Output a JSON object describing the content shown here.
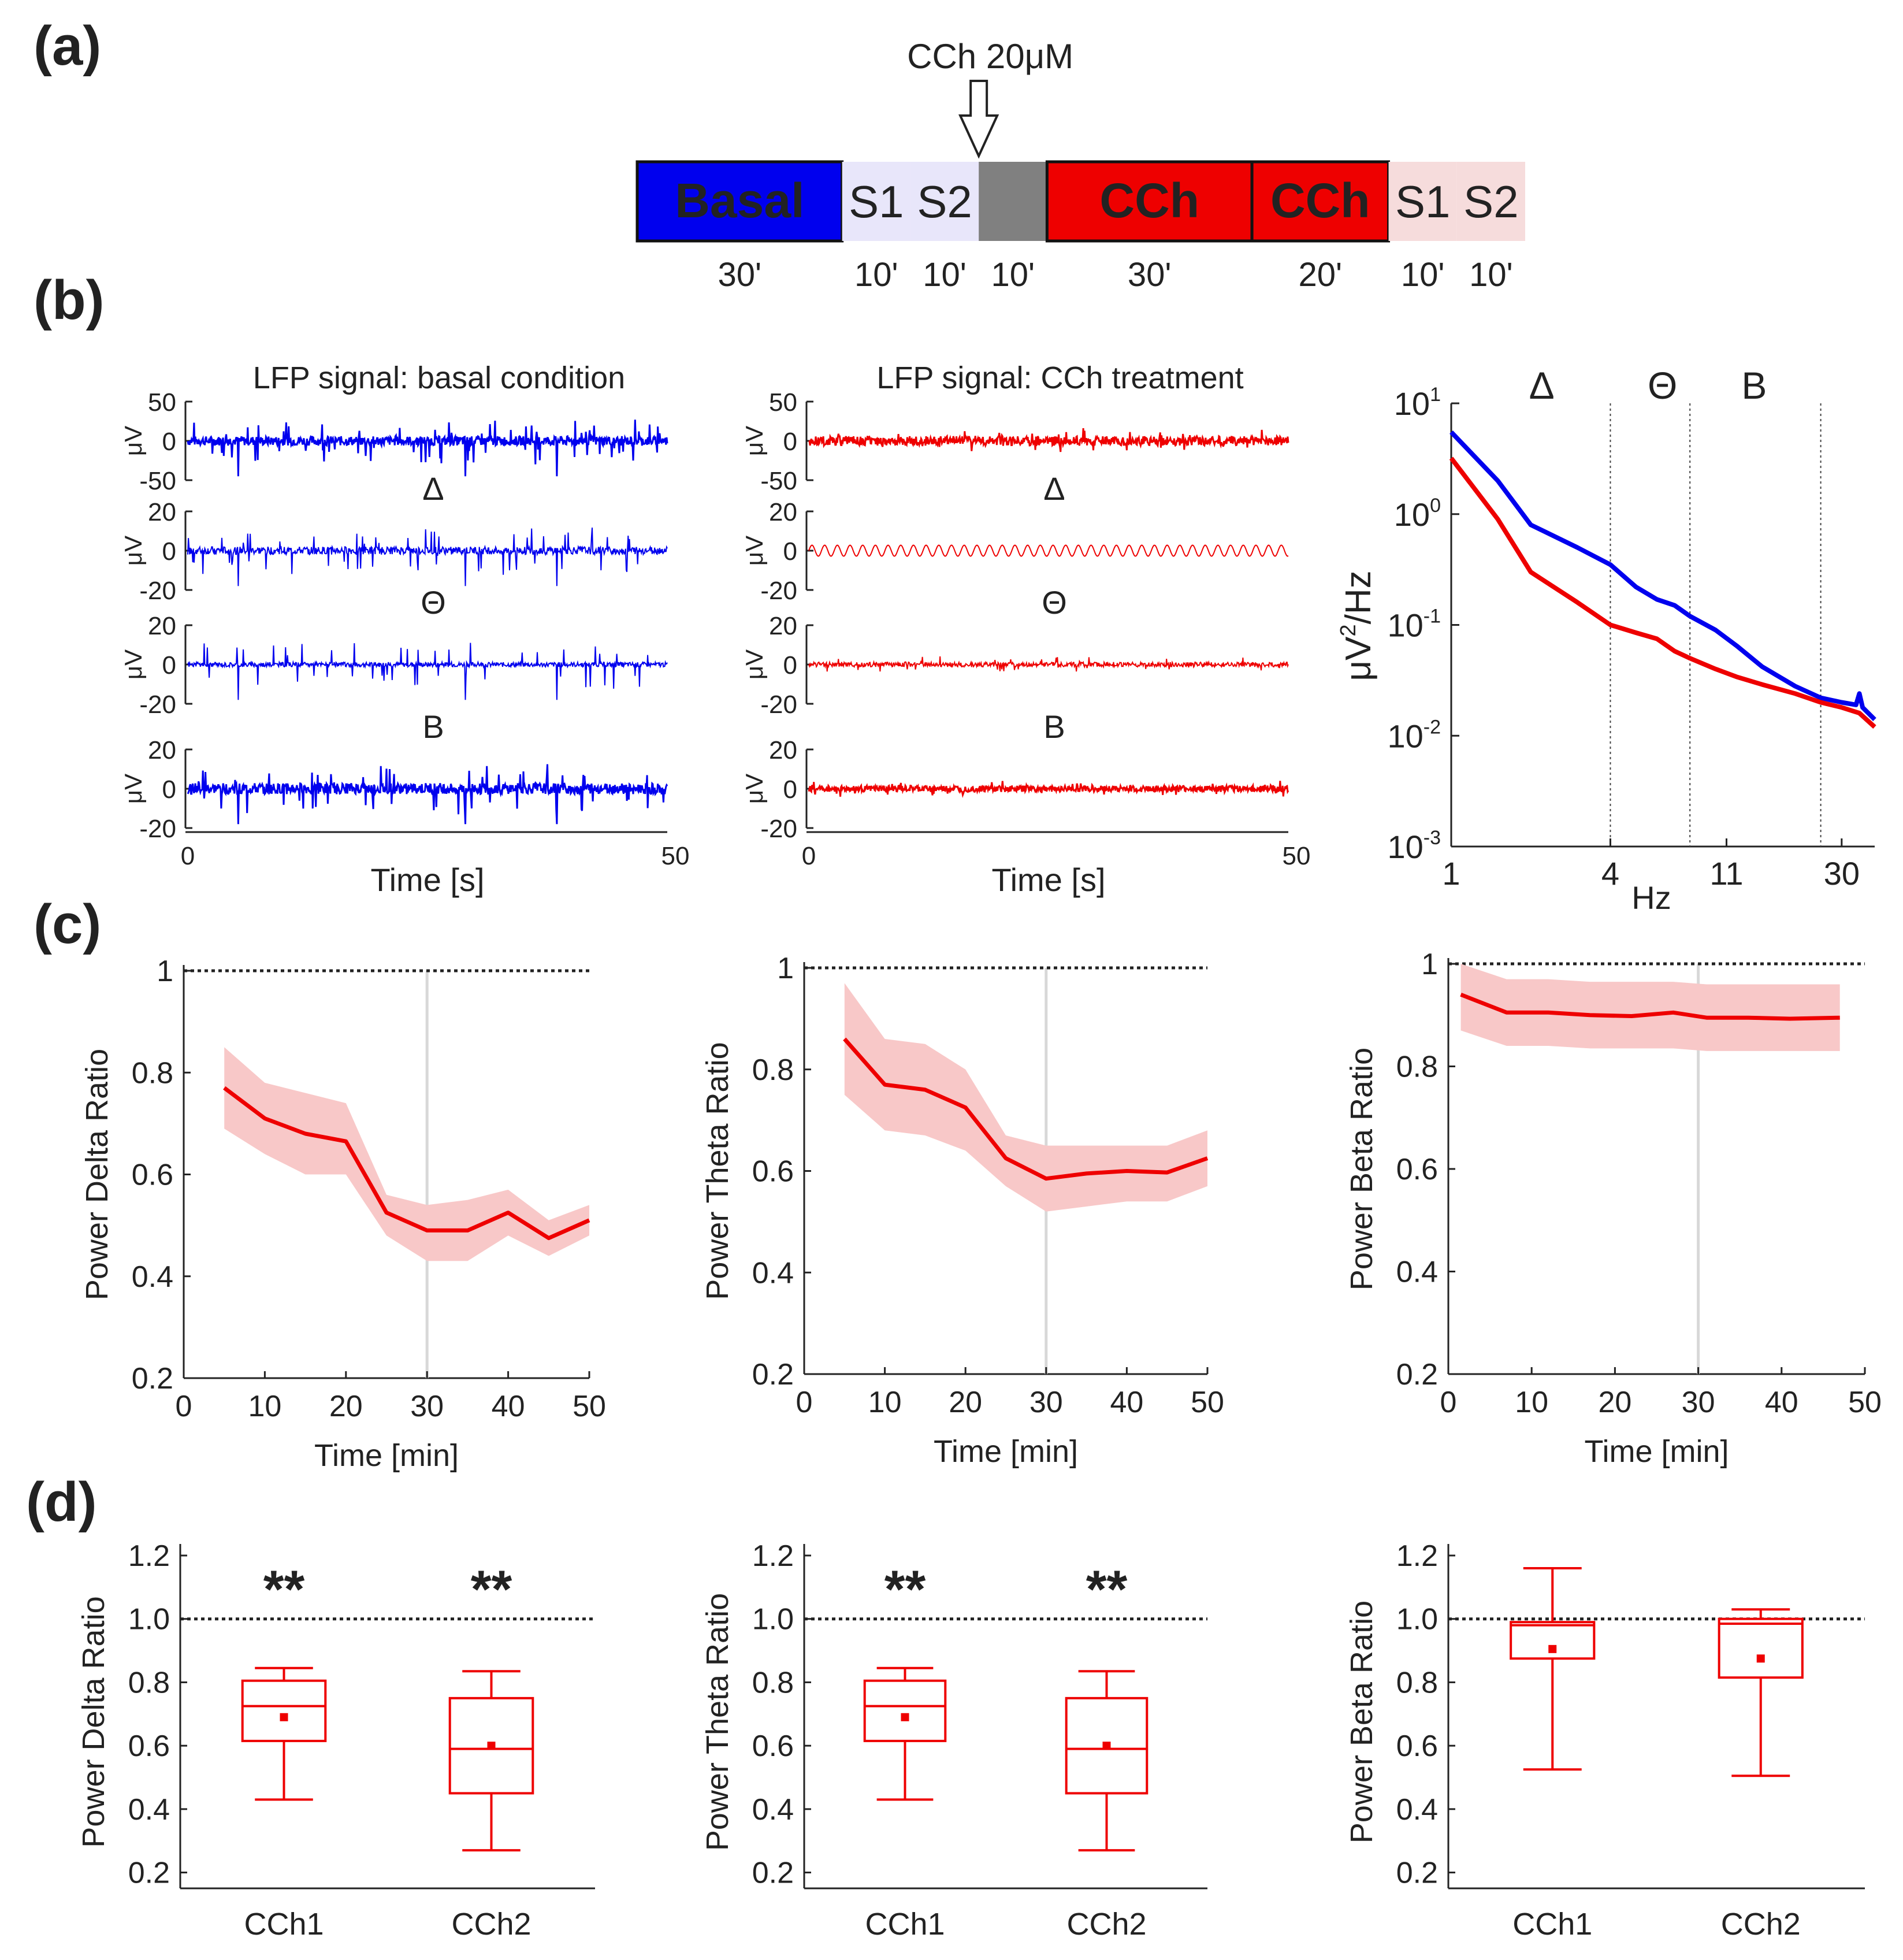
{
  "panel_labels": [
    "(a)",
    "(b)",
    "(c)",
    "(d)"
  ],
  "colors": {
    "basal": "#0000ee",
    "cch": "#ee0000",
    "band": "#f8c8c8",
    "grey": "#808080",
    "s_basal": "#e8e6fa",
    "s_cch": "#f6dcdc"
  },
  "chart_data": [
    {
      "id": "protocol",
      "type": "timeline",
      "panel": "(a)",
      "drug_label": "CCh 20μM",
      "segments": [
        {
          "label": "Basal",
          "duration": "30'",
          "minutes": 30,
          "kind": "basal"
        },
        {
          "label": "S1",
          "duration": "10'",
          "minutes": 10,
          "kind": "s_basal"
        },
        {
          "label": "S2",
          "duration": "10'",
          "minutes": 10,
          "kind": "s_basal"
        },
        {
          "label": "",
          "duration": "10'",
          "minutes": 10,
          "kind": "grey"
        },
        {
          "label": "CCh",
          "duration": "30'",
          "minutes": 30,
          "kind": "cch"
        },
        {
          "label": "CCh",
          "duration": "20'",
          "minutes": 20,
          "kind": "cch"
        },
        {
          "label": "S1",
          "duration": "10'",
          "minutes": 10,
          "kind": "s_cch"
        },
        {
          "label": "S2",
          "duration": "10'",
          "minutes": 10,
          "kind": "s_cch"
        }
      ]
    },
    {
      "id": "lfp-basal",
      "type": "line",
      "panel": "(b)",
      "title": "LFP signal: basal condition",
      "xlabel": "Time [s]",
      "ylabel": "μV",
      "xlim": [
        0,
        50
      ],
      "xticks": [
        "0",
        "50"
      ],
      "color": "#0000ee",
      "rows": [
        {
          "name": "raw",
          "label": "",
          "ylim": [
            -50,
            50
          ],
          "yticks": [
            "50",
            "0",
            "-50"
          ],
          "noise": 0.12,
          "spike": 0.55
        },
        {
          "name": "delta",
          "label": "Δ",
          "ylim": [
            -20,
            20
          ],
          "yticks": [
            "20",
            "0",
            "-20"
          ],
          "noise": 0.1,
          "spike": 0.55
        },
        {
          "name": "theta",
          "label": "Θ",
          "ylim": [
            -20,
            20
          ],
          "yticks": [
            "20",
            "0",
            "-20"
          ],
          "noise": 0.06,
          "spike": 0.6
        },
        {
          "name": "beta",
          "label": "B",
          "ylim": [
            -20,
            20
          ],
          "yticks": [
            "20",
            "0",
            "-20"
          ],
          "noise": 0.14,
          "spike": 0.55
        }
      ]
    },
    {
      "id": "lfp-cch",
      "type": "line",
      "panel": "(b)",
      "title": "LFP signal: CCh treatment",
      "xlabel": "Time [s]",
      "ylabel": "μV",
      "xlim": [
        0,
        50
      ],
      "xticks": [
        "0",
        "50"
      ],
      "color": "#ee0000",
      "rows": [
        {
          "name": "raw",
          "label": "",
          "ylim": [
            -50,
            50
          ],
          "yticks": [
            "50",
            "0",
            "-50"
          ],
          "noise": 0.12,
          "spike": 0.22
        },
        {
          "name": "delta",
          "label": "Δ",
          "ylim": [
            -20,
            20
          ],
          "yticks": [
            "20",
            "0",
            "-20"
          ],
          "noise": 0.14,
          "spike": 0.0
        },
        {
          "name": "theta",
          "label": "Θ",
          "ylim": [
            -20,
            20
          ],
          "yticks": [
            "20",
            "0",
            "-20"
          ],
          "noise": 0.06,
          "spike": 0.18
        },
        {
          "name": "beta",
          "label": "B",
          "ylim": [
            -20,
            20
          ],
          "yticks": [
            "20",
            "0",
            "-20"
          ],
          "noise": 0.08,
          "spike": 0.15
        }
      ]
    },
    {
      "id": "psd",
      "type": "line",
      "panel": "(b)",
      "xlabel": "Hz",
      "ylabel": "μV²/Hz",
      "ylabel_main": "μV",
      "ylabel_sup": "2",
      "ylabel_tail": "/Hz",
      "xscale": "log",
      "yscale": "log",
      "xlim": [
        1,
        40
      ],
      "ylim": [
        0.001,
        10
      ],
      "xticks": [
        {
          "v": 1,
          "t": "1"
        },
        {
          "v": 4,
          "t": "4"
        },
        {
          "v": 11,
          "t": "11"
        },
        {
          "v": 30,
          "t": "30"
        }
      ],
      "yticks": [
        {
          "v": 10,
          "base": "10",
          "exp": "1"
        },
        {
          "v": 1,
          "base": "10",
          "exp": "0"
        },
        {
          "v": 0.1,
          "base": "10",
          "exp": "-1"
        },
        {
          "v": 0.01,
          "base": "10",
          "exp": "-2"
        },
        {
          "v": 0.001,
          "base": "10",
          "exp": "-3"
        }
      ],
      "dividers": [
        4,
        8,
        25
      ],
      "bands": [
        {
          "label": "Δ",
          "x": 2.2
        },
        {
          "label": "Θ",
          "x": 6.3
        },
        {
          "label": "B",
          "x": 14
        }
      ],
      "series": [
        {
          "name": "basal",
          "color": "#0000ee",
          "x": [
            1,
            1.5,
            2,
            3,
            4,
            5,
            6,
            7,
            8,
            10,
            12,
            15,
            20,
            25,
            30,
            34,
            35,
            36,
            40
          ],
          "y": [
            5.5,
            2.0,
            0.8,
            0.5,
            0.35,
            0.22,
            0.17,
            0.15,
            0.12,
            0.09,
            0.065,
            0.042,
            0.028,
            0.022,
            0.02,
            0.019,
            0.024,
            0.018,
            0.014
          ]
        },
        {
          "name": "cch",
          "color": "#ee0000",
          "x": [
            1,
            1.5,
            2,
            3,
            4,
            5,
            6,
            7,
            8,
            10,
            12,
            15,
            20,
            25,
            30,
            35,
            40
          ],
          "y": [
            3.2,
            0.9,
            0.3,
            0.16,
            0.1,
            0.085,
            0.075,
            0.058,
            0.05,
            0.04,
            0.034,
            0.029,
            0.024,
            0.02,
            0.018,
            0.016,
            0.012
          ]
        }
      ]
    },
    {
      "id": "delta-time",
      "type": "line",
      "panel": "(c)",
      "xlabel": "Time [min]",
      "ylabel": "Power Delta Ratio",
      "xlim": [
        0,
        50
      ],
      "ylim": [
        0.2,
        1.0
      ],
      "xticks": [
        0,
        10,
        20,
        30,
        40,
        50
      ],
      "yticks": [
        {
          "v": 0.2,
          "t": "0.2"
        },
        {
          "v": 0.4,
          "t": "0.4"
        },
        {
          "v": 0.6,
          "t": "0.6"
        },
        {
          "v": 0.8,
          "t": "0.8"
        },
        {
          "v": 1.0,
          "t": "1"
        }
      ],
      "reference": 1.0,
      "vline": 30,
      "series": [
        {
          "name": "CCh",
          "color": "#ee0000",
          "x": [
            5,
            10,
            15,
            20,
            25,
            30,
            35,
            40,
            45,
            50
          ],
          "y": [
            0.77,
            0.71,
            0.68,
            0.665,
            0.525,
            0.49,
            0.49,
            0.525,
            0.475,
            0.51
          ],
          "lower": [
            0.69,
            0.64,
            0.6,
            0.6,
            0.48,
            0.43,
            0.43,
            0.48,
            0.44,
            0.48
          ],
          "upper": [
            0.85,
            0.78,
            0.76,
            0.74,
            0.56,
            0.54,
            0.55,
            0.57,
            0.51,
            0.54
          ]
        }
      ]
    },
    {
      "id": "theta-time",
      "type": "line",
      "panel": "(c)",
      "xlabel": "Time [min]",
      "ylabel": "Power Theta  Ratio",
      "xlim": [
        0,
        50
      ],
      "ylim": [
        0.2,
        1.0
      ],
      "xticks": [
        0,
        10,
        20,
        30,
        40,
        50
      ],
      "yticks": [
        {
          "v": 0.2,
          "t": "0.2"
        },
        {
          "v": 0.4,
          "t": "0.4"
        },
        {
          "v": 0.6,
          "t": "0.6"
        },
        {
          "v": 0.8,
          "t": "0.8"
        },
        {
          "v": 1.0,
          "t": "1"
        }
      ],
      "reference": 1.0,
      "vline": 30,
      "series": [
        {
          "name": "CCh",
          "color": "#ee0000",
          "x": [
            5,
            10,
            15,
            20,
            25,
            30,
            35,
            40,
            45,
            50
          ],
          "y": [
            0.86,
            0.77,
            0.76,
            0.725,
            0.625,
            0.585,
            0.595,
            0.6,
            0.597,
            0.625
          ],
          "lower": [
            0.75,
            0.68,
            0.67,
            0.64,
            0.57,
            0.52,
            0.53,
            0.54,
            0.54,
            0.57
          ],
          "upper": [
            0.97,
            0.86,
            0.85,
            0.8,
            0.67,
            0.65,
            0.65,
            0.65,
            0.65,
            0.68
          ]
        }
      ]
    },
    {
      "id": "beta-time",
      "type": "line",
      "panel": "(c)",
      "xlabel": "Time [min]",
      "ylabel": "Power Beta  Ratio",
      "xlim": [
        0,
        50
      ],
      "ylim": [
        0.2,
        1.0
      ],
      "xticks": [
        0,
        10,
        20,
        30,
        40,
        50
      ],
      "yticks": [
        {
          "v": 0.2,
          "t": "0.2"
        },
        {
          "v": 0.4,
          "t": "0.4"
        },
        {
          "v": 0.6,
          "t": "0.6"
        },
        {
          "v": 0.8,
          "t": "0.8"
        },
        {
          "v": 1.0,
          "t": "1"
        }
      ],
      "reference": 1.0,
      "vline": 30,
      "series": [
        {
          "name": "CCh",
          "color": "#ee0000",
          "x": [
            1.5,
            7,
            12,
            17,
            22,
            27,
            31,
            36,
            41,
            47
          ],
          "y": [
            0.94,
            0.905,
            0.905,
            0.9,
            0.898,
            0.905,
            0.895,
            0.895,
            0.893,
            0.895
          ],
          "lower": [
            0.87,
            0.84,
            0.84,
            0.835,
            0.835,
            0.835,
            0.83,
            0.83,
            0.83,
            0.83
          ],
          "upper": [
            1.0,
            0.97,
            0.97,
            0.965,
            0.965,
            0.965,
            0.96,
            0.96,
            0.96,
            0.96
          ]
        }
      ]
    },
    {
      "id": "delta-box",
      "type": "box",
      "panel": "(d)",
      "ylabel": "Power Delta Ratio",
      "ylim": [
        0.15,
        1.2
      ],
      "yticks": [
        {
          "v": 0.2,
          "t": "0.2"
        },
        {
          "v": 0.4,
          "t": "0.4"
        },
        {
          "v": 0.6,
          "t": "0.6"
        },
        {
          "v": 0.8,
          "t": "0.8"
        },
        {
          "v": 1.0,
          "t": "1.0"
        },
        {
          "v": 1.2,
          "t": "1.2"
        }
      ],
      "reference": 1.0,
      "color": "#ee0000",
      "categories": [
        "CCh1",
        "CCh2"
      ],
      "boxes": [
        {
          "min": 0.43,
          "q1": 0.615,
          "median": 0.725,
          "q3": 0.805,
          "max": 0.845,
          "mean": 0.69,
          "sig": "**"
        },
        {
          "min": 0.27,
          "q1": 0.45,
          "median": 0.59,
          "q3": 0.75,
          "max": 0.835,
          "mean": 0.6,
          "sig": "**"
        }
      ]
    },
    {
      "id": "theta-box",
      "type": "box",
      "panel": "(d)",
      "ylabel": "Power Theta  Ratio",
      "ylim": [
        0.15,
        1.2
      ],
      "yticks": [
        {
          "v": 0.2,
          "t": "0.2"
        },
        {
          "v": 0.4,
          "t": "0.4"
        },
        {
          "v": 0.6,
          "t": "0.6"
        },
        {
          "v": 0.8,
          "t": "0.8"
        },
        {
          "v": 1.0,
          "t": "1.0"
        },
        {
          "v": 1.2,
          "t": "1.2"
        }
      ],
      "reference": 1.0,
      "color": "#ee0000",
      "categories": [
        "CCh1",
        "CCh2"
      ],
      "boxes": [
        {
          "min": 0.43,
          "q1": 0.615,
          "median": 0.725,
          "q3": 0.805,
          "max": 0.845,
          "mean": 0.69,
          "sig": "**"
        },
        {
          "min": 0.27,
          "q1": 0.45,
          "median": 0.59,
          "q3": 0.75,
          "max": 0.835,
          "mean": 0.6,
          "sig": "**"
        }
      ]
    },
    {
      "id": "beta-box",
      "type": "box",
      "panel": "(d)",
      "ylabel": "Power Beta  Ratio",
      "ylim": [
        0.15,
        1.2
      ],
      "yticks": [
        {
          "v": 0.2,
          "t": "0.2"
        },
        {
          "v": 0.4,
          "t": "0.4"
        },
        {
          "v": 0.6,
          "t": "0.6"
        },
        {
          "v": 0.8,
          "t": "0.8"
        },
        {
          "v": 1.0,
          "t": "1.0"
        },
        {
          "v": 1.2,
          "t": "1.2"
        }
      ],
      "reference": 1.0,
      "color": "#ee0000",
      "categories": [
        "CCh1",
        "CCh2"
      ],
      "boxes": [
        {
          "min": 0.525,
          "q1": 0.875,
          "median": 0.98,
          "q3": 0.99,
          "max": 1.16,
          "mean": 0.905,
          "sig": ""
        },
        {
          "min": 0.505,
          "q1": 0.815,
          "median": 0.985,
          "q3": 1.0,
          "max": 1.03,
          "mean": 0.875,
          "sig": ""
        }
      ]
    }
  ]
}
